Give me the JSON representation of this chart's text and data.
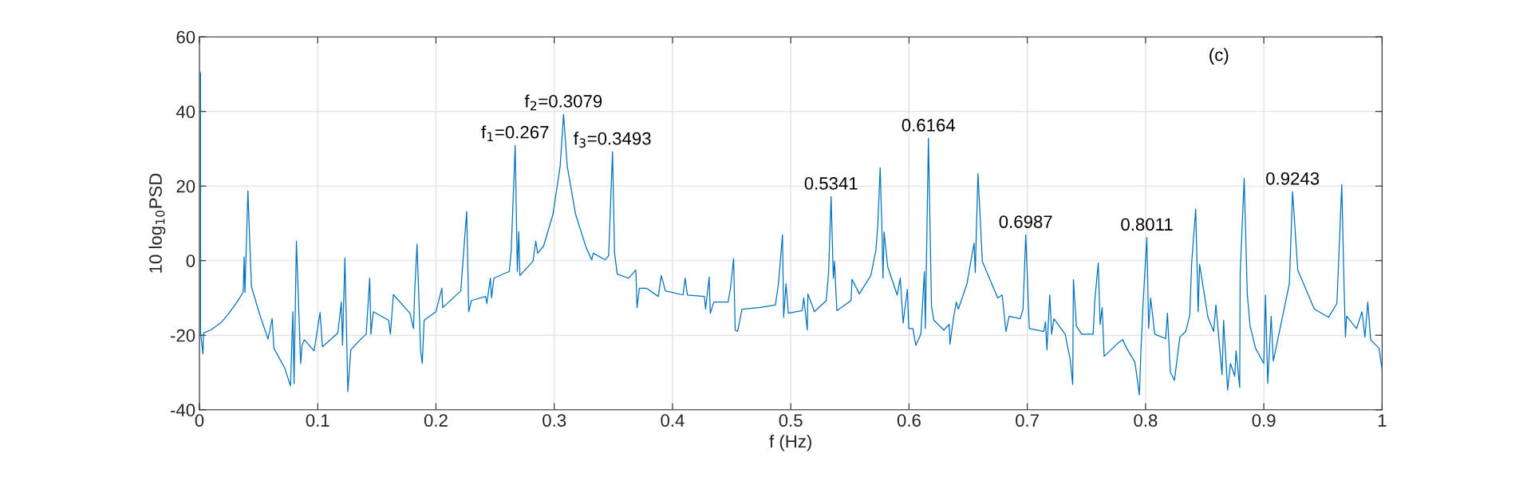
{
  "chart_data": {
    "type": "line",
    "xlabel": "f (Hz)",
    "ylabel": "10 log$_{10}$PSD",
    "xlim": [
      0,
      1
    ],
    "ylim": [
      -40,
      60
    ],
    "xticks": [
      0,
      0.1,
      0.2,
      0.3,
      0.4,
      0.5,
      0.6,
      0.7,
      0.8,
      0.9,
      1
    ],
    "yticks": [
      -40,
      -20,
      0,
      20,
      40,
      60
    ],
    "grid": true,
    "line_style": "solid",
    "marker": "none",
    "series": [
      {
        "color": "#0072bd",
        "x": [
          0.001,
          0.001,
          0.003,
          0.0035,
          0.0095,
          0.018,
          0.024,
          0.032,
          0.037,
          0.0378,
          0.0385,
          0.041,
          0.043,
          0.044,
          0.051,
          0.058,
          0.0615,
          0.063,
          0.072,
          0.077,
          0.079,
          0.08,
          0.082,
          0.0856,
          0.0868,
          0.0887,
          0.097,
          0.102,
          0.104,
          0.117,
          0.12,
          0.121,
          0.123,
          0.1255,
          0.128,
          0.136,
          0.141,
          0.144,
          0.145,
          0.147,
          0.16,
          0.1615,
          0.164,
          0.178,
          0.181,
          0.182,
          0.184,
          0.187,
          0.1884,
          0.19,
          0.2,
          0.205,
          0.2057,
          0.221,
          0.223,
          0.226,
          0.2277,
          0.23,
          0.242,
          0.243,
          0.246,
          0.247,
          0.249,
          0.262,
          0.2636,
          0.267,
          0.2688,
          0.27,
          0.271,
          0.282,
          0.2844,
          0.286,
          0.291,
          0.299,
          0.305,
          0.3079,
          0.311,
          0.318,
          0.327,
          0.3317,
          0.333,
          0.343,
          0.346,
          0.3493,
          0.351,
          0.3533,
          0.363,
          0.369,
          0.37,
          0.372,
          0.378,
          0.388,
          0.3905,
          0.394,
          0.409,
          0.4107,
          0.4126,
          0.427,
          0.428,
          0.431,
          0.432,
          0.435,
          0.447,
          0.449,
          0.4517,
          0.453,
          0.455,
          0.4588,
          0.473,
          0.487,
          0.4896,
          0.493,
          0.494,
          0.496,
          0.498,
          0.5097,
          0.511,
          0.514,
          0.5145,
          0.52,
          0.53,
          0.532,
          0.5341,
          0.536,
          0.537,
          0.539,
          0.551,
          0.5518,
          0.558,
          0.5677,
          0.572,
          0.5736,
          0.5756,
          0.577,
          0.578,
          0.5789,
          0.582,
          0.59,
          0.5926,
          0.595,
          0.5986,
          0.5998,
          0.6033,
          0.6057,
          0.61,
          0.613,
          0.6138,
          0.6164,
          0.619,
          0.621,
          0.6294,
          0.634,
          0.6346,
          0.6377,
          0.64,
          0.6417,
          0.649,
          0.655,
          0.656,
          0.6583,
          0.662,
          0.675,
          0.6787,
          0.682,
          0.6846,
          0.694,
          0.6964,
          0.6987,
          0.7017,
          0.714,
          0.7154,
          0.7166,
          0.719,
          0.7206,
          0.7225,
          0.732,
          0.7363,
          0.7384,
          0.739,
          0.7415,
          0.746,
          0.7557,
          0.757,
          0.76,
          0.7616,
          0.7633,
          0.765,
          0.777,
          0.7806,
          0.784,
          0.791,
          0.7948,
          0.796,
          0.7979,
          0.8011,
          0.8026,
          0.8043,
          0.8078,
          0.817,
          0.8185,
          0.821,
          0.8244,
          0.829,
          0.834,
          0.8374,
          0.839,
          0.8424,
          0.8445,
          0.8457,
          0.8528,
          0.8576,
          0.8595,
          0.8647,
          0.866,
          0.8694,
          0.8718,
          0.8754,
          0.8765,
          0.8796,
          0.88,
          0.8834,
          0.886,
          0.8884,
          0.893,
          0.9,
          0.9014,
          0.9033,
          0.9062,
          0.908,
          0.9216,
          0.9243,
          0.9287,
          0.9427,
          0.9547,
          0.9618,
          0.9659,
          0.9678,
          0.969,
          0.97,
          0.9784,
          0.983,
          0.9855,
          0.9879,
          0.9903,
          0.9974,
          1
        ],
        "values": [
          50.4,
          -19.4,
          -25,
          -19.4,
          -18.6,
          -16.7,
          -14.5,
          -11,
          -8.5,
          1,
          -8.5,
          18.7,
          1.3,
          -7,
          -14.5,
          -21,
          -15.6,
          -23.5,
          -28.7,
          -33.6,
          -13.7,
          -33,
          5.2,
          -27.6,
          -22.7,
          -21.2,
          -24.2,
          -13.9,
          -23.1,
          -19.4,
          -11.1,
          -22.7,
          0.7,
          -35.1,
          -23.9,
          -21.2,
          -19.7,
          -4.7,
          -19.7,
          -13.7,
          -16,
          -19.7,
          -9.1,
          -14.1,
          -18.2,
          -8.5,
          4.4,
          -23.9,
          -27.6,
          -16,
          -13.7,
          -7.4,
          -12.6,
          -8.1,
          0.5,
          13.2,
          -13.7,
          -10.7,
          -9.6,
          -11.5,
          -4.7,
          -10,
          -4.7,
          -2.9,
          2.4,
          30.9,
          -2.9,
          7.8,
          -4,
          -0.2,
          5.2,
          2,
          3.9,
          12.5,
          25.3,
          39.2,
          25.3,
          12.5,
          3.5,
          0.2,
          2,
          0.2,
          1.3,
          29.2,
          2,
          -3.6,
          -4.7,
          -2.5,
          -12.6,
          -7.4,
          -7.4,
          -9.6,
          -4,
          -8.1,
          -9.2,
          -4.7,
          -9.2,
          -9.6,
          -13,
          -4.4,
          -14.1,
          -11.1,
          -11.1,
          -7.4,
          0.5,
          -18.6,
          -19,
          -13,
          -12.6,
          -11.9,
          -6.2,
          6.9,
          -15.2,
          -6.2,
          -14.1,
          -13.4,
          -10,
          -18.6,
          -8.9,
          -13.7,
          -10.7,
          -3.2,
          17.2,
          -4.7,
          -0.2,
          -13.4,
          -10.7,
          -5,
          -8.9,
          -4,
          2.8,
          9.5,
          24.9,
          9.5,
          -4.7,
          7.7,
          -1.7,
          -9.2,
          -4.7,
          -16.7,
          -7.7,
          -18.2,
          -18.2,
          -22.7,
          -19.7,
          -2.9,
          -18.2,
          32.8,
          -12.2,
          -16,
          -18.6,
          -17.1,
          -22.4,
          -15.2,
          -11.1,
          -13,
          -6.2,
          4.7,
          -3.2,
          23.4,
          -0.2,
          -10,
          -9.2,
          -19,
          -14.9,
          -15.6,
          -13,
          6.9,
          -18.2,
          -19,
          -16.4,
          -23.9,
          -9.2,
          -19.7,
          -15.6,
          -19.7,
          -26.5,
          -33.2,
          -5.1,
          -17.5,
          -19.7,
          -19.7,
          -11.1,
          -0.6,
          -17.1,
          -12.6,
          -25.7,
          -22,
          -21.2,
          -23.5,
          -27.2,
          -36,
          -25,
          -11.5,
          6.2,
          -18.2,
          -10,
          -19.7,
          -20.9,
          -14.1,
          -29.9,
          -32.1,
          -20.5,
          -19,
          -14.5,
          -0.6,
          13.8,
          -13.7,
          -1,
          -15.2,
          -19,
          -11.9,
          -30.6,
          -16,
          -34.7,
          -27.6,
          -31,
          -24.2,
          -34,
          -3.6,
          22.1,
          -8.9,
          -17.5,
          -23.5,
          -27.6,
          -9.2,
          -32.9,
          -14.9,
          -26.9,
          -6.2,
          18.5,
          -2.5,
          -13,
          -15.2,
          -11.5,
          20.4,
          -6.2,
          -20.5,
          -14.9,
          -18.2,
          -13.7,
          -20.5,
          -11.1,
          -21.2,
          -23.5,
          -29.1
        ]
      }
    ],
    "annotations": [
      {
        "text": "f$_{1}$=0.267",
        "x": 0.267,
        "y": 30.9
      },
      {
        "text": "f$_{2}$=0.3079",
        "x": 0.3079,
        "y": 39.2
      },
      {
        "text": "f$_{3}$=0.3493",
        "x": 0.3493,
        "y": 29.2
      },
      {
        "text": "0.5341",
        "x": 0.5341,
        "y": 17.2
      },
      {
        "text": "0.6164",
        "x": 0.6164,
        "y": 32.8
      },
      {
        "text": "0.6987",
        "x": 0.6987,
        "y": 6.9
      },
      {
        "text": "0.8011",
        "x": 0.8011,
        "y": 6.2
      },
      {
        "text": "0.9243",
        "x": 0.9243,
        "y": 18.5
      },
      "(c)"
    ]
  }
}
